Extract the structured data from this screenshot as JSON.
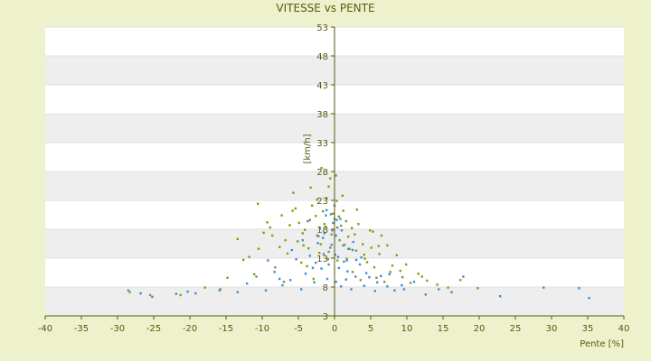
{
  "chart_data": {
    "type": "scatter",
    "title": "VITESSE vs PENTE",
    "xlabel": "Pente [%]",
    "ylabel": "[km/h]",
    "xlim": [
      -40,
      40
    ],
    "ylim": [
      3,
      53
    ],
    "xticks": [
      -40,
      -35,
      -30,
      -25,
      -20,
      -15,
      -10,
      -5,
      0,
      5,
      10,
      15,
      20,
      25,
      30,
      35,
      40
    ],
    "yticks": [
      3,
      8,
      13,
      18,
      23,
      28,
      33,
      38,
      43,
      48,
      53
    ],
    "alternating_bands": true,
    "colors": {
      "background": "#eef2cc",
      "band": "#eeeeee",
      "plot": "#ffffff",
      "axis": "#555a10",
      "series_blue": "#3a8fd6",
      "series_olive": "#8c9a12"
    },
    "series": [
      {
        "marker_color": "#8c9a12",
        "x": [
          -28.3,
          -25.5,
          -21.3,
          -17.9,
          -15.9,
          -14.8,
          -12.6,
          -11.1,
          -10.5,
          -9.3,
          -8.2,
          -7.6,
          -7.0,
          -6.2,
          -5.8,
          -5.1,
          -4.6,
          -4.1,
          -3.4,
          -2.9,
          -2.2,
          -1.6,
          -1.2,
          -0.8,
          -0.4,
          0.0,
          0.4,
          0.9,
          1.4,
          1.9,
          2.5,
          3.0,
          3.6,
          4.2,
          4.9,
          5.5,
          6.2,
          6.9,
          7.7,
          8.6,
          9.4,
          10.5,
          11.6,
          12.8,
          14.2,
          15.7,
          17.4,
          19.8,
          -13.4,
          -11.8,
          -9.8,
          -8.6,
          -7.3,
          -6.5,
          -4.9,
          -3.8,
          -2.6,
          -1.9,
          -0.9,
          0.6,
          1.6,
          2.8,
          3.9,
          5.1,
          6.5,
          8.0,
          9.9,
          12.1,
          -10.6,
          -8.9,
          -6.8,
          -5.4,
          -4.3,
          -3.1,
          -2.1,
          -1.1,
          -0.2,
          0.7,
          1.7,
          2.4,
          3.3,
          4.5,
          5.8,
          7.3,
          9.1,
          -5.7,
          -4.4,
          -3.3,
          -2.4,
          -1.4,
          -0.6,
          0.3,
          1.2,
          2.1,
          3.1,
          4.1,
          5.3,
          -1.8,
          -0.8,
          0.2,
          1.1,
          -3.6,
          6.1
        ],
        "y": [
          7.1,
          6.6,
          6.6,
          7.9,
          7.4,
          9.6,
          12.7,
          10.2,
          14.6,
          19.2,
          11.4,
          14.9,
          8.9,
          18.7,
          21.2,
          15.9,
          12.2,
          17.9,
          19.6,
          9.4,
          16.8,
          21.1,
          18.4,
          14.1,
          17.1,
          19.8,
          12.6,
          18.6,
          15.3,
          16.7,
          10.6,
          14.3,
          9.2,
          12.9,
          17.8,
          11.4,
          13.7,
          8.9,
          10.6,
          13.5,
          9.7,
          8.7,
          10.3,
          9.1,
          8.4,
          7.9,
          9.2,
          7.8,
          16.3,
          13.2,
          17.4,
          16.9,
          20.4,
          13.8,
          19.1,
          11.6,
          20.3,
          15.4,
          12.8,
          20.2,
          19.4,
          17.1,
          15.4,
          14.8,
          16.9,
          11.7,
          11.9,
          9.8,
          22.4,
          18.3,
          16.1,
          21.6,
          15.2,
          22.1,
          13.9,
          23.4,
          20.7,
          16.1,
          12.9,
          18.2,
          18.9,
          12.3,
          9.6,
          15.2,
          10.8,
          24.3,
          17.3,
          25.2,
          23.1,
          18.9,
          26.8,
          22.9,
          21.2,
          14.6,
          21.4,
          13.6,
          17.6,
          28.6,
          25.4,
          27.3,
          23.8,
          14.7,
          15.1
        ]
      },
      {
        "marker_color": "#3a8fd6",
        "x": [
          -28.5,
          -26.8,
          -25.2,
          -21.9,
          -20.3,
          -19.2,
          -15.8,
          -13.4,
          -12.1,
          -10.8,
          -9.5,
          -8.3,
          -7.2,
          -6.1,
          -5.3,
          -4.6,
          -4.0,
          -3.4,
          -2.8,
          -2.3,
          -1.8,
          -1.4,
          -1.0,
          -0.6,
          -0.2,
          0.2,
          0.5,
          0.9,
          1.3,
          1.8,
          2.3,
          2.9,
          3.5,
          4.1,
          4.8,
          5.6,
          6.4,
          7.3,
          8.3,
          9.6,
          11.0,
          12.6,
          14.4,
          16.2,
          17.8,
          22.9,
          28.9,
          33.8,
          35.2,
          -9.2,
          -7.6,
          -5.9,
          -4.4,
          -3.0,
          -2.0,
          -1.2,
          -0.4,
          0.0,
          0.3,
          1.0,
          1.9,
          3.0,
          4.4,
          5.9,
          7.6,
          9.3,
          -3.7,
          -2.6,
          -1.6,
          -0.8,
          0.1,
          0.8,
          1.6,
          2.6,
          3.7,
          -1.1,
          -0.3,
          0.2,
          0.6,
          1.2,
          -0.5,
          0.4,
          -1.5,
          1.7,
          -2.4,
          2.5
        ],
        "y": [
          7.4,
          6.9,
          6.3,
          6.8,
          7.2,
          6.9,
          7.6,
          7.1,
          8.6,
          9.8,
          7.4,
          10.6,
          8.3,
          9.2,
          12.8,
          7.6,
          10.3,
          13.4,
          8.8,
          15.6,
          11.2,
          17.3,
          9.4,
          14.8,
          19.1,
          16.9,
          13.2,
          8.1,
          12.4,
          10.7,
          7.6,
          9.8,
          11.9,
          8.2,
          9.7,
          7.3,
          9.9,
          8.1,
          7.4,
          7.6,
          8.9,
          6.7,
          7.6,
          7.1,
          9.8,
          6.4,
          7.9,
          7.8,
          6.1,
          12.6,
          9.4,
          14.4,
          16.1,
          11.3,
          18.2,
          20.4,
          15.3,
          22.1,
          19.6,
          17.8,
          14.6,
          12.7,
          10.4,
          8.8,
          10.2,
          8.3,
          19.4,
          12.2,
          16.5,
          11.9,
          13.6,
          19.8,
          9.3,
          15.8,
          13.1,
          21.3,
          17.8,
          8.9,
          11.3,
          15.2,
          20.6,
          18.3,
          13.7,
          12.6,
          16.9,
          14.4
        ]
      }
    ]
  }
}
